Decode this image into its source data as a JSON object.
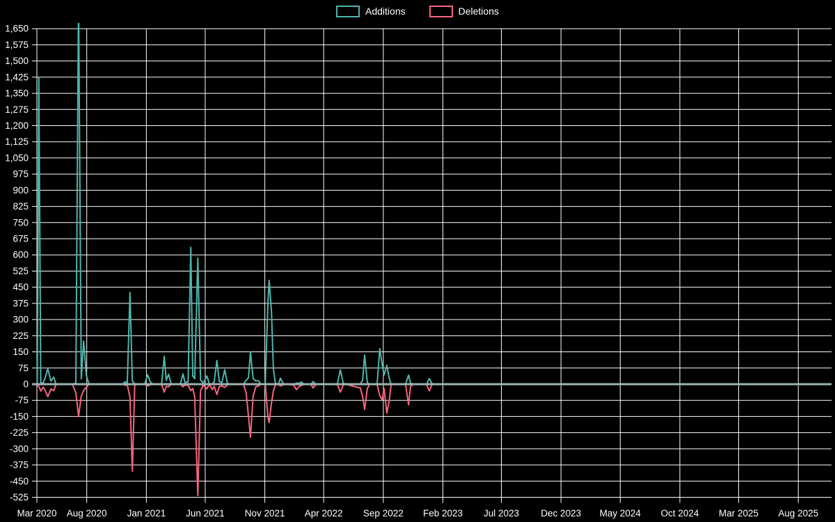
{
  "chart_data": {
    "type": "line",
    "title": "",
    "legend_position": "top-center",
    "grid": true,
    "colors": {
      "background": "#000000",
      "gridline": "#FFFFFF",
      "zero_line": "#9EB4B4",
      "text": "#FFFFFF",
      "additions": "#4DB6AC",
      "deletions": "#F8647E"
    },
    "legend": [
      {
        "label": "Additions",
        "color": "#4DB6AC"
      },
      {
        "label": "Deletions",
        "color": "#F8647E"
      }
    ],
    "y_axis": {
      "min": -525,
      "max": 1650,
      "step": 75
    },
    "x_ticks": [
      {
        "label": "Mar 2020",
        "date": "2020-03-26"
      },
      {
        "label": "Aug 2020",
        "date": "2020-08-01"
      },
      {
        "label": "Jan 2021",
        "date": "2021-01-01"
      },
      {
        "label": "Jun 2021",
        "date": "2021-06-01"
      },
      {
        "label": "Nov 2021",
        "date": "2021-11-01"
      },
      {
        "label": "Apr 2022",
        "date": "2022-04-01"
      },
      {
        "label": "Sep 2022",
        "date": "2022-09-01"
      },
      {
        "label": "Feb 2023",
        "date": "2023-02-01"
      },
      {
        "label": "Jul 2023",
        "date": "2023-07-01"
      },
      {
        "label": "Dec 2023",
        "date": "2023-12-01"
      },
      {
        "label": "May 2024",
        "date": "2024-05-01"
      },
      {
        "label": "Oct 2024",
        "date": "2024-10-01"
      },
      {
        "label": "Mar 2025",
        "date": "2025-03-01"
      },
      {
        "label": "Aug 2025",
        "date": "2025-08-01"
      }
    ],
    "dates": [
      "2020-03-21",
      "2020-03-27",
      "2020-03-31",
      "2020-04-05",
      "2020-04-11",
      "2020-04-16",
      "2020-04-23",
      "2020-05-01",
      "2020-05-08",
      "2020-05-14",
      "2020-05-20",
      "2020-06-25",
      "2020-07-04",
      "2020-07-11",
      "2020-07-18",
      "2020-07-24",
      "2020-07-31",
      "2020-08-07",
      "2020-11-01",
      "2020-11-08",
      "2020-11-13",
      "2020-11-20",
      "2020-11-26",
      "2020-12-02",
      "2020-12-07",
      "2020-12-28",
      "2021-01-04",
      "2021-01-11",
      "2021-01-18",
      "2021-02-09",
      "2021-02-16",
      "2021-02-21",
      "2021-02-27",
      "2021-03-06",
      "2021-03-29",
      "2021-04-05",
      "2021-04-10",
      "2021-04-18",
      "2021-04-25",
      "2021-04-30",
      "2021-05-05",
      "2021-05-13",
      "2021-05-20",
      "2021-05-27",
      "2021-06-05",
      "2021-06-12",
      "2021-06-19",
      "2021-06-24",
      "2021-07-01",
      "2021-07-07",
      "2021-07-14",
      "2021-07-21",
      "2021-07-28",
      "2021-08-04",
      "2021-09-07",
      "2021-09-14",
      "2021-09-20",
      "2021-09-25",
      "2021-10-02",
      "2021-10-09",
      "2021-10-15",
      "2021-10-22",
      "2021-11-02",
      "2021-11-09",
      "2021-11-12",
      "2021-11-18",
      "2021-11-23",
      "2021-11-28",
      "2021-12-06",
      "2021-12-11",
      "2021-12-18",
      "2021-12-25",
      "2022-01-14",
      "2022-01-21",
      "2022-01-28",
      "2022-02-03",
      "2022-02-10",
      "2022-02-28",
      "2022-03-05",
      "2022-03-12",
      "2022-05-06",
      "2022-05-14",
      "2022-05-21",
      "2022-05-28",
      "2022-07-04",
      "2022-07-10",
      "2022-07-15",
      "2022-07-22",
      "2022-07-28",
      "2022-08-16",
      "2022-08-23",
      "2022-08-29",
      "2022-09-03",
      "2022-09-10",
      "2022-09-16",
      "2022-09-21",
      "2022-09-28",
      "2022-10-28",
      "2022-11-05",
      "2022-11-10",
      "2022-11-17",
      "2022-12-21",
      "2022-12-28",
      "2023-01-04",
      "2023-01-11"
    ],
    "series": [
      {
        "name": "Additions",
        "color": "#4DB6AC",
        "values": [
          0,
          4,
          1420,
          8,
          4,
          28,
          72,
          14,
          33,
          2,
          0,
          0,
          5,
          1800,
          25,
          200,
          40,
          0,
          0,
          12,
          3,
          426,
          15,
          2,
          0,
          0,
          44,
          10,
          0,
          0,
          130,
          18,
          46,
          0,
          0,
          48,
          8,
          10,
          635,
          38,
          25,
          585,
          20,
          5,
          38,
          0,
          2,
          10,
          110,
          12,
          8,
          67,
          4,
          0,
          0,
          18,
          30,
          148,
          25,
          15,
          17,
          0,
          0,
          380,
          482,
          340,
          71,
          4,
          0,
          28,
          3,
          0,
          0,
          5,
          4,
          10,
          0,
          2,
          12,
          0,
          0,
          66,
          5,
          0,
          0,
          20,
          135,
          8,
          0,
          0,
          165,
          90,
          43,
          87,
          30,
          0,
          0,
          0,
          42,
          5,
          0,
          0,
          26,
          3,
          0
        ]
      },
      {
        "name": "Deletions",
        "color": "#F8647E",
        "values": [
          0,
          -4,
          -10,
          -32,
          -14,
          -28,
          -58,
          -22,
          -30,
          -2,
          0,
          0,
          -40,
          -150,
          -55,
          -30,
          -14,
          0,
          0,
          -5,
          -3,
          -60,
          -404,
          -6,
          0,
          0,
          -8,
          -3,
          0,
          0,
          -37,
          -10,
          -12,
          0,
          0,
          -12,
          -4,
          -5,
          -30,
          -20,
          -60,
          -517,
          -30,
          -5,
          -22,
          0,
          -25,
          -10,
          -48,
          -12,
          -8,
          -15,
          -4,
          0,
          0,
          -40,
          -150,
          -246,
          -55,
          -12,
          -8,
          0,
          0,
          -155,
          -178,
          -90,
          -30,
          -4,
          0,
          -8,
          -3,
          0,
          -4,
          -26,
          -10,
          -6,
          0,
          -2,
          -18,
          0,
          0,
          -37,
          -5,
          0,
          -18,
          -59,
          -118,
          -20,
          0,
          0,
          -54,
          -72,
          -20,
          -134,
          -80,
          -5,
          0,
          0,
          -96,
          -10,
          0,
          0,
          -31,
          -3,
          0
        ]
      }
    ]
  }
}
